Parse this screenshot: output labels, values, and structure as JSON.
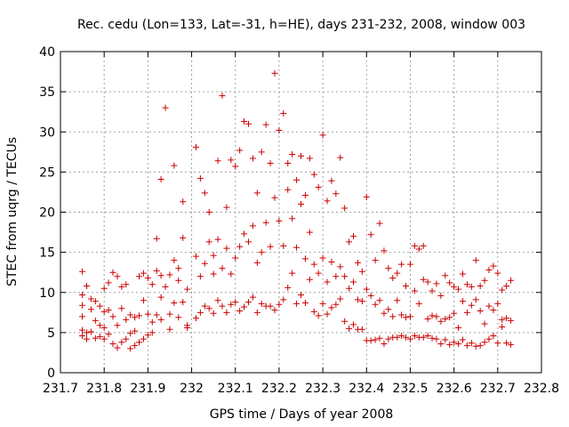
{
  "chart_data": {
    "type": "scatter",
    "title": "Rec. cedu (Lon=133, Lat=-31, h=HE), days 231-232, 2008, window 003",
    "xlabel": "GPS time / Days of year 2008",
    "ylabel": "STEC from uqrg / TECUs",
    "xlim": [
      231.7,
      232.8
    ],
    "ylim": [
      0,
      40
    ],
    "xticks": [
      "231.7",
      "231.8",
      "231.9",
      "232",
      "232.1",
      "232.2",
      "232.3",
      "232.4",
      "232.5",
      "232.6",
      "232.7",
      "232.8"
    ],
    "yticks": [
      "0",
      "5",
      "10",
      "15",
      "20",
      "25",
      "30",
      "35",
      "40"
    ],
    "grid": true,
    "marker": "+",
    "color": "#cc0000",
    "series": [
      {
        "x": [
          231.75,
          231.75,
          231.75,
          231.75,
          231.75,
          231.75,
          231.76,
          231.76,
          231.76,
          231.77,
          231.77,
          231.77,
          231.78,
          231.78,
          231.78,
          231.79,
          231.79,
          231.79,
          231.8,
          231.8,
          231.8,
          231.8,
          231.81,
          231.81,
          231.81,
          231.82,
          231.82,
          231.82,
          231.83,
          231.83,
          231.83,
          231.84,
          231.84,
          231.84,
          231.85,
          231.85,
          231.85,
          231.86,
          231.86,
          231.86,
          231.87,
          231.87,
          231.87,
          231.88,
          231.88,
          231.88,
          231.89,
          231.89,
          231.89,
          231.9,
          231.9,
          231.9,
          231.91,
          231.91,
          231.91,
          231.92,
          231.92,
          231.92,
          231.93,
          231.93,
          231.93,
          231.93,
          231.94,
          231.94,
          231.95,
          231.95,
          231.95,
          231.96,
          231.96,
          231.96,
          231.97,
          231.97,
          231.97,
          231.98,
          231.98,
          231.98,
          231.99,
          231.99,
          231.99
        ],
        "y": [
          12.6,
          9.7,
          8.4,
          7.0,
          5.3,
          4.6,
          10.8,
          5.0,
          4.2,
          9.2,
          7.9,
          5.1,
          8.9,
          6.5,
          4.3,
          8.3,
          5.9,
          4.5,
          10.5,
          7.6,
          5.6,
          4.2,
          11.2,
          7.8,
          4.8,
          12.5,
          7.0,
          3.6,
          12.0,
          5.9,
          3.1,
          10.7,
          8.0,
          3.8,
          11.0,
          6.6,
          4.2,
          7.2,
          4.9,
          3.0,
          6.9,
          5.2,
          3.4,
          12.0,
          7.1,
          3.8,
          12.4,
          9.0,
          4.2,
          11.8,
          7.3,
          4.7,
          11.0,
          6.3,
          5.0,
          16.7,
          12.7,
          7.2,
          24.1,
          12.1,
          9.4,
          6.6,
          33.0,
          10.7,
          12.2,
          7.3,
          5.4,
          25.8,
          14.0,
          8.7,
          13.0,
          11.5,
          6.9,
          21.3,
          16.8,
          8.8,
          5.9,
          5.6,
          10.4
        ]
      },
      {
        "x": [
          232.01,
          232.01,
          232.01,
          232.02,
          232.02,
          232.02,
          232.03,
          232.03,
          232.03,
          232.04,
          232.04,
          232.04,
          232.05,
          232.05,
          232.05,
          232.06,
          232.06,
          232.06,
          232.07,
          232.07,
          232.07,
          232.08,
          232.08,
          232.08,
          232.09,
          232.09,
          232.09,
          232.1,
          232.1,
          232.1,
          232.11,
          232.11,
          232.11,
          232.12,
          232.12,
          232.12,
          232.13,
          232.13,
          232.13,
          232.14,
          232.14,
          232.14,
          232.15,
          232.15,
          232.15,
          232.16,
          232.16,
          232.16,
          232.17,
          232.17,
          232.17,
          232.18,
          232.18,
          232.18,
          232.19,
          232.19,
          232.19,
          232.2,
          232.2,
          232.2,
          232.21,
          232.21,
          232.21,
          232.22,
          232.22,
          232.22,
          232.23,
          232.23,
          232.23,
          232.24,
          232.24,
          232.24,
          232.25,
          232.25,
          232.25,
          232.26,
          232.26,
          232.26,
          232.27,
          232.27,
          232.27,
          232.28,
          232.28,
          232.28,
          232.29,
          232.29,
          232.29,
          232.3,
          232.3,
          232.3
        ],
        "y": [
          28.1,
          14.5,
          6.8,
          24.2,
          12.0,
          7.5,
          22.4,
          13.6,
          8.3,
          20.0,
          16.3,
          8.0,
          14.6,
          12.3,
          7.4,
          26.4,
          16.6,
          9.0,
          34.5,
          13.0,
          8.3,
          20.6,
          15.5,
          7.5,
          26.5,
          12.3,
          8.5,
          25.7,
          14.3,
          8.8,
          27.7,
          15.7,
          7.7,
          31.3,
          17.3,
          8.2,
          31.0,
          16.3,
          8.8,
          26.7,
          18.3,
          9.4,
          22.4,
          13.7,
          7.5,
          27.5,
          15.0,
          8.6,
          30.9,
          18.7,
          8.3,
          26.1,
          15.7,
          8.3,
          37.3,
          21.8,
          7.8,
          30.2,
          18.9,
          8.5,
          32.3,
          15.8,
          9.1,
          26.1,
          22.8,
          10.6,
          27.2,
          19.2,
          12.4,
          24.0,
          15.6,
          8.6,
          27.0,
          21.0,
          9.7,
          22.1,
          14.2,
          8.7,
          26.7,
          17.5,
          11.6,
          24.7,
          13.5,
          7.6,
          23.1,
          12.4,
          7.1,
          29.6,
          14.3,
          8.6
        ]
      },
      {
        "x": [
          232.31,
          232.31,
          232.31,
          232.32,
          232.32,
          232.32,
          232.33,
          232.33,
          232.33,
          232.34,
          232.34,
          232.34,
          232.35,
          232.35,
          232.35,
          232.36,
          232.36,
          232.36,
          232.37,
          232.37,
          232.37,
          232.38,
          232.38,
          232.38,
          232.39,
          232.39,
          232.39,
          232.4,
          232.4,
          232.4,
          232.41,
          232.41,
          232.41,
          232.42,
          232.42,
          232.42,
          232.43,
          232.43,
          232.43,
          232.44,
          232.44,
          232.44,
          232.45,
          232.45,
          232.45,
          232.46,
          232.46,
          232.46,
          232.47,
          232.47,
          232.47,
          232.48,
          232.48,
          232.48,
          232.49,
          232.49,
          232.49,
          232.5,
          232.5,
          232.5,
          232.51,
          232.51,
          232.51,
          232.52,
          232.52,
          232.52,
          232.53,
          232.53,
          232.53,
          232.54,
          232.54,
          232.54,
          232.55,
          232.55,
          232.55
        ],
        "y": [
          21.4,
          11.3,
          7.3,
          23.9,
          13.8,
          8.1,
          22.3,
          12.0,
          8.5,
          26.8,
          13.2,
          9.2,
          20.5,
          12.0,
          6.4,
          16.3,
          10.5,
          5.5,
          17.0,
          11.3,
          6.0,
          13.7,
          9.1,
          5.4,
          12.6,
          8.9,
          5.4,
          21.9,
          10.4,
          4.0,
          17.2,
          9.6,
          4.0,
          14.0,
          8.5,
          4.1,
          18.6,
          9.0,
          4.3,
          15.2,
          7.4,
          3.6,
          13.0,
          7.9,
          4.2,
          11.8,
          7.0,
          4.4,
          12.4,
          9.0,
          4.4,
          13.5,
          7.2,
          4.6,
          10.8,
          6.9,
          4.4,
          13.5,
          7.0,
          4.2,
          15.8,
          10.2,
          4.6,
          15.4,
          8.6,
          4.4,
          15.8,
          11.6,
          4.4,
          11.3,
          6.7,
          4.6,
          10.2,
          7.1,
          4.3
        ]
      },
      {
        "x": [
          232.56,
          232.56,
          232.56,
          232.57,
          232.57,
          232.57,
          232.58,
          232.58,
          232.58,
          232.59,
          232.59,
          232.59,
          232.6,
          232.6,
          232.6,
          232.61,
          232.61,
          232.61,
          232.62,
          232.62,
          232.62,
          232.63,
          232.63,
          232.63,
          232.64,
          232.64,
          232.64,
          232.65,
          232.65,
          232.65,
          232.66,
          232.66,
          232.66,
          232.67,
          232.67,
          232.67,
          232.68,
          232.68,
          232.68,
          232.69,
          232.69,
          232.69,
          232.7,
          232.7,
          232.7,
          232.71,
          232.71,
          232.71,
          232.72,
          232.72,
          232.72,
          232.73,
          232.73,
          232.73
        ],
        "y": [
          11.1,
          7.0,
          4.2,
          9.6,
          6.4,
          3.6,
          12.1,
          6.7,
          4.1,
          11.2,
          6.9,
          3.5,
          10.7,
          7.4,
          3.8,
          10.4,
          5.6,
          3.6,
          12.3,
          8.9,
          4.1,
          11.0,
          7.5,
          3.4,
          10.7,
          8.4,
          3.7,
          14.0,
          9.1,
          3.3,
          10.8,
          7.7,
          3.4,
          11.5,
          6.1,
          3.8,
          12.8,
          8.3,
          4.2,
          13.3,
          7.8,
          4.6,
          12.4,
          8.6,
          3.7,
          10.3,
          6.6,
          5.7,
          10.8,
          6.8,
          3.7,
          11.5,
          6.5,
          3.5
        ]
      }
    ]
  }
}
